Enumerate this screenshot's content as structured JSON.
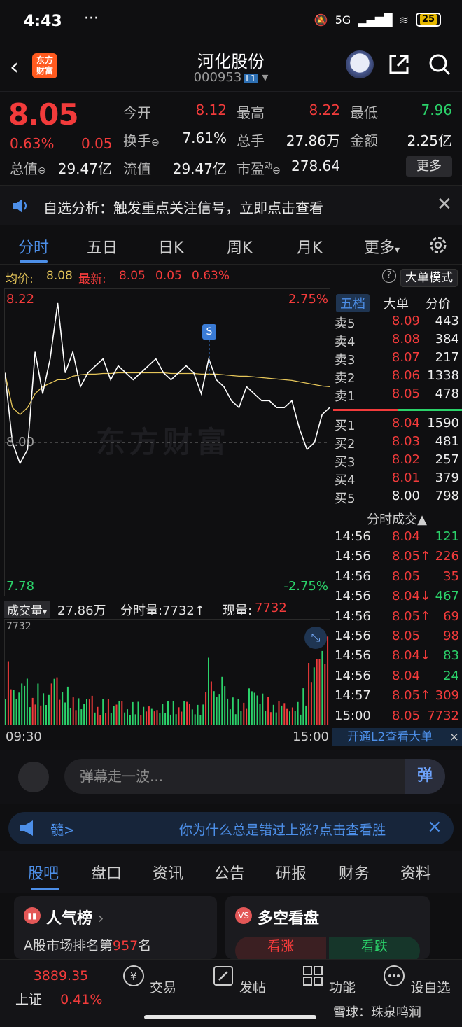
{
  "status": {
    "time": "4:43",
    "dots": "···",
    "network": "5G",
    "battery": "25"
  },
  "header": {
    "logo_line1": "东方",
    "logo_line2": "财富",
    "name": "河化股份",
    "code": "000953",
    "level": "L1"
  },
  "quote": {
    "price": "8.05",
    "pct": "0.63%",
    "change": "0.05",
    "open_label": "今开",
    "open": "8.12",
    "high_label": "最高",
    "high": "8.22",
    "low_label": "最低",
    "low": "7.96",
    "turnover_label": "换手",
    "turnover": "7.61%",
    "volume_label": "总手",
    "volume": "27.86万",
    "amount_label": "金额",
    "amount": "2.25亿",
    "mktcap_label": "总值",
    "mktcap": "29.47亿",
    "float_label": "流值",
    "float": "29.47亿",
    "pe_label": "市盈",
    "pe_sup": "动",
    "pe": "278.64",
    "more": "更多"
  },
  "notice": {
    "text": "自选分析：触发重点关注信号，立即点击查看"
  },
  "tabs": [
    "分时",
    "五日",
    "日K",
    "周K",
    "月K",
    "更多"
  ],
  "avg": {
    "label": "均价:",
    "value": "8.08",
    "latest_label": "最新:",
    "latest": "8.05",
    "chg": "0.05",
    "pct": "0.63%",
    "mode": "大单模式"
  },
  "chart": {
    "high_label": "8.22",
    "high_pct": "2.75%",
    "mid_label": "8.00",
    "low_label": "7.78",
    "low_pct": "-2.75%",
    "marker": "S",
    "watermark": "东方财富"
  },
  "chart_data": {
    "type": "line",
    "ylim": [
      7.78,
      8.22
    ],
    "base": 8.0,
    "price": [
      8.1,
      8.0,
      7.97,
      7.99,
      8.13,
      8.07,
      8.12,
      8.2,
      8.1,
      8.13,
      8.08,
      8.1,
      8.11,
      8.12,
      8.09,
      8.11,
      8.1,
      8.09,
      8.1,
      8.11,
      8.12,
      8.1,
      8.09,
      8.1,
      8.11,
      8.1,
      8.07,
      8.12,
      8.09,
      8.08,
      8.06,
      8.05,
      8.08,
      8.07,
      8.06,
      8.06,
      8.05,
      8.05,
      8.06,
      8.02,
      7.99,
      8.0,
      8.04,
      8.05
    ],
    "avg": [
      8.1,
      8.05,
      8.04,
      8.05,
      8.07,
      8.08,
      8.085,
      8.09,
      8.09,
      8.095,
      8.097,
      8.098,
      8.098,
      8.099,
      8.099,
      8.1,
      8.1,
      8.1,
      8.1,
      8.1,
      8.1,
      8.1,
      8.099,
      8.099,
      8.099,
      8.099,
      8.098,
      8.098,
      8.098,
      8.097,
      8.096,
      8.095,
      8.095,
      8.094,
      8.093,
      8.092,
      8.091,
      8.09,
      8.089,
      8.087,
      8.085,
      8.083,
      8.081,
      8.08
    ],
    "volume": [
      70,
      40,
      55,
      30,
      45,
      35,
      60,
      38,
      42,
      30,
      25,
      35,
      20,
      28,
      22,
      30,
      18,
      25,
      20,
      22,
      18,
      24,
      26,
      20,
      30,
      18,
      22,
      75,
      40,
      60,
      30,
      28,
      25,
      45,
      35,
      30,
      22,
      28,
      20,
      25,
      40,
      70,
      90,
      100
    ]
  },
  "book": {
    "headers": [
      "五档",
      "大单",
      "分价"
    ],
    "sells": [
      {
        "label": "卖5",
        "price": "8.09",
        "vol": "443"
      },
      {
        "label": "卖4",
        "price": "8.08",
        "vol": "384"
      },
      {
        "label": "卖3",
        "price": "8.07",
        "vol": "217"
      },
      {
        "label": "卖2",
        "price": "8.06",
        "vol": "1338"
      },
      {
        "label": "卖1",
        "price": "8.05",
        "vol": "478"
      }
    ],
    "buys": [
      {
        "label": "买1",
        "price": "8.04",
        "vol": "1590"
      },
      {
        "label": "买2",
        "price": "8.03",
        "vol": "481"
      },
      {
        "label": "买3",
        "price": "8.02",
        "vol": "257"
      },
      {
        "label": "买4",
        "price": "8.01",
        "vol": "379"
      },
      {
        "label": "买5",
        "price": "8.00",
        "vol": "798"
      }
    ]
  },
  "trades": {
    "title": "分时成交▲",
    "rows": [
      {
        "t": "14:56",
        "p": "8.04",
        "v": "121",
        "dir": "d"
      },
      {
        "t": "14:56",
        "p": "8.05↑",
        "v": "226",
        "dir": "u"
      },
      {
        "t": "14:56",
        "p": "8.05",
        "v": "35",
        "dir": "u"
      },
      {
        "t": "14:56",
        "p": "8.04↓",
        "v": "467",
        "dir": "d"
      },
      {
        "t": "14:56",
        "p": "8.05↑",
        "v": "69",
        "dir": "u"
      },
      {
        "t": "14:56",
        "p": "8.05",
        "v": "98",
        "dir": "u"
      },
      {
        "t": "14:56",
        "p": "8.04↓",
        "v": "83",
        "dir": "d"
      },
      {
        "t": "14:56",
        "p": "8.04",
        "v": "24",
        "dir": "d"
      },
      {
        "t": "14:57",
        "p": "8.05↑",
        "v": "309",
        "dir": "u"
      },
      {
        "t": "15:00",
        "p": "8.05",
        "v": "7732",
        "dir": "u"
      }
    ]
  },
  "volhdr": {
    "label": "成交量",
    "total": "27.86万",
    "fs_label": "分时量:7732↑",
    "now_label": "现量:",
    "now": "7732",
    "max": "7732"
  },
  "timeaxis": {
    "start": "09:30",
    "end": "15:00"
  },
  "l2": {
    "text": "开通L2查看大单",
    "close": "×"
  },
  "danmaku": {
    "placeholder": "弹幕走一波...",
    "btn": "弹"
  },
  "promo": {
    "prefix": "髓>",
    "text": "你为什么总是错过上涨?点击查看胜",
    "close": "×"
  },
  "section_tabs": [
    "股吧",
    "盘口",
    "资讯",
    "公告",
    "研报",
    "财务",
    "资料"
  ],
  "cards": {
    "popular_title": "人气榜",
    "popular_sub_pre": "A股市场排名第",
    "popular_rank": "957",
    "popular_sub_post": "名",
    "vote_title": "多空看盘",
    "vote_up": "看涨",
    "vote_down": "看跌"
  },
  "bottomnav": {
    "index_value": "3889.35",
    "index_name": "上证",
    "index_pct": "0.41%",
    "items": [
      "交易",
      "发帖",
      "功能",
      "设自选"
    ]
  },
  "credit": "雪球：珠泉鸣涧"
}
